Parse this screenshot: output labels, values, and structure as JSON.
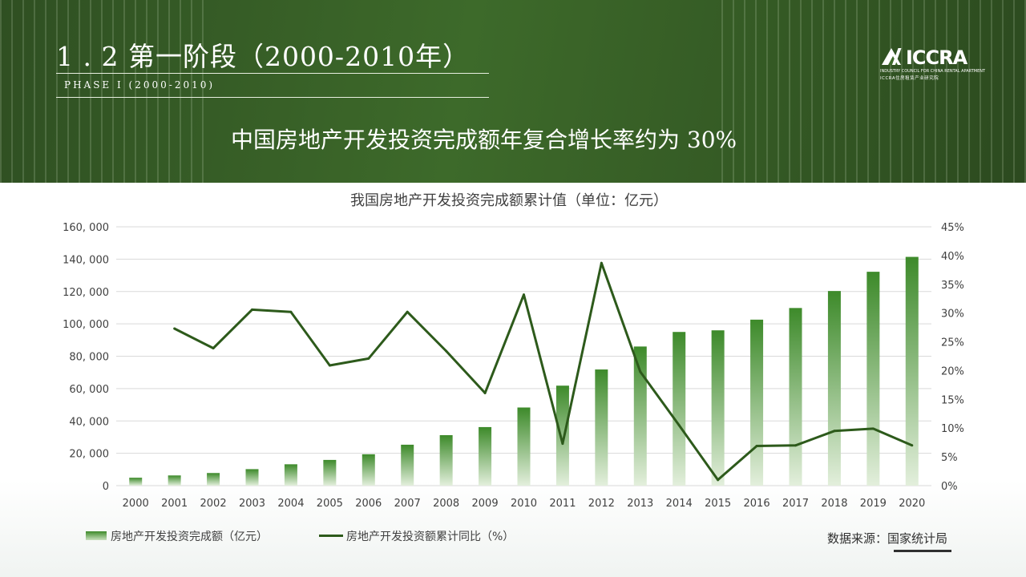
{
  "slide": {
    "section_title": "1 . 2  第一阶段（2000-2010年）",
    "section_subtitle": "PHASE I (2000-2010)",
    "headline": "中国房地产开发投资完成额年复合增长率约为 30%",
    "logo": {
      "text": "ICCRA",
      "sub1": "INDUSTRY COUNCIL FOR CHINA RENTAL APARTMENT",
      "sub2": "ICCRA住房租赁产业研究院"
    },
    "source": "数据来源：国家统计局"
  },
  "colors": {
    "header_green": "#3d6a2a",
    "bar_top": "#3d8a2a",
    "bar_bottom": "#e3efdc",
    "line": "#2d5a1b"
  },
  "chart_data": {
    "type": "bar",
    "title": "我国房地产开发投资完成额累计值（单位：亿元）",
    "categories": [
      "2000",
      "2001",
      "2002",
      "2003",
      "2004",
      "2005",
      "2006",
      "2007",
      "2008",
      "2009",
      "2010",
      "2011",
      "2012",
      "2013",
      "2014",
      "2015",
      "2016",
      "2017",
      "2018",
      "2019",
      "2020"
    ],
    "series": [
      {
        "name": "房地产开发投资完成额（亿元）",
        "type": "bar",
        "axis": "left",
        "values": [
          4900,
          6300,
          7800,
          10200,
          13200,
          15900,
          19400,
          25300,
          31200,
          36200,
          48300,
          61800,
          71800,
          86000,
          95000,
          96000,
          102600,
          109800,
          120300,
          132200,
          141400
        ]
      },
      {
        "name": "房地产开发投资额累计同比（%）",
        "type": "line",
        "axis": "right",
        "values": [
          null,
          27.3,
          23.9,
          30.6,
          30.2,
          20.9,
          22.1,
          30.2,
          23.4,
          16.1,
          33.2,
          7.3,
          38.7,
          19.8,
          10.5,
          1.0,
          6.9,
          7.0,
          9.5,
          9.9,
          7.0
        ]
      }
    ],
    "y_left": {
      "min": 0,
      "max": 160000,
      "ticks": [
        "0",
        "20, 000",
        "40, 000",
        "60, 000",
        "80, 000",
        "100, 000",
        "120, 000",
        "140, 000",
        "160, 000"
      ]
    },
    "y_right": {
      "min": 0,
      "max": 45,
      "ticks": [
        "0%",
        "5%",
        "10%",
        "15%",
        "20%",
        "25%",
        "30%",
        "35%",
        "40%",
        "45%"
      ]
    },
    "grid": true,
    "legend": "bottom-left"
  }
}
